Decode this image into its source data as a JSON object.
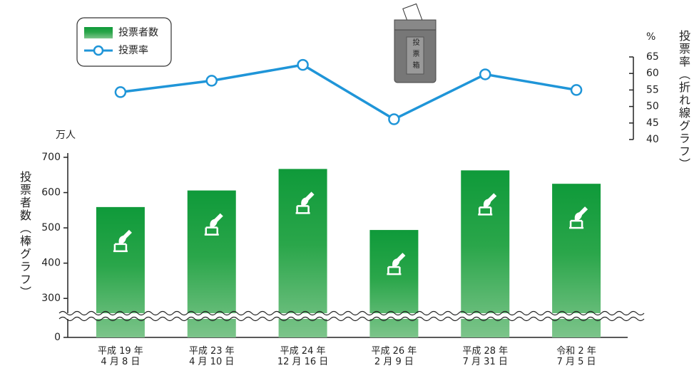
{
  "chart_data": {
    "type": "bar_line",
    "legend": {
      "bar": "投票者数",
      "line": "投票率"
    },
    "icon_label": "投票箱",
    "y_unit": "万人",
    "y2_unit": "%",
    "y_title": "投票者数（棒グラフ）",
    "y2_title": "投票率（折れ線グラフ）",
    "categories": [
      "平成 19 年\n4 月 8 日",
      "平成 23 年\n4 月 10 日",
      "平成 24 年\n12 月 16 日",
      "平成 26 年\n2 月 9 日",
      "平成 28 年\n7 月 31 日",
      "令和 2 年\n7 月 5 日"
    ],
    "series": [
      {
        "name": "投票者数",
        "color": "#1a9a3c",
        "values": [
          559,
          606,
          667,
          494,
          663,
          625
        ]
      },
      {
        "name": "投票率",
        "color": "#1f95d8",
        "axis": "y2",
        "values": [
          54.35,
          57.8,
          62.6,
          46.14,
          59.73,
          55.0
        ]
      }
    ],
    "ylim": [
      0,
      700
    ],
    "yticks": [
      0,
      300,
      400,
      500,
      600,
      700
    ],
    "axis_break": [
      0,
      250
    ],
    "y2lim": [
      40,
      65
    ],
    "y2ticks": [
      40,
      45,
      50,
      55,
      60,
      65
    ]
  }
}
